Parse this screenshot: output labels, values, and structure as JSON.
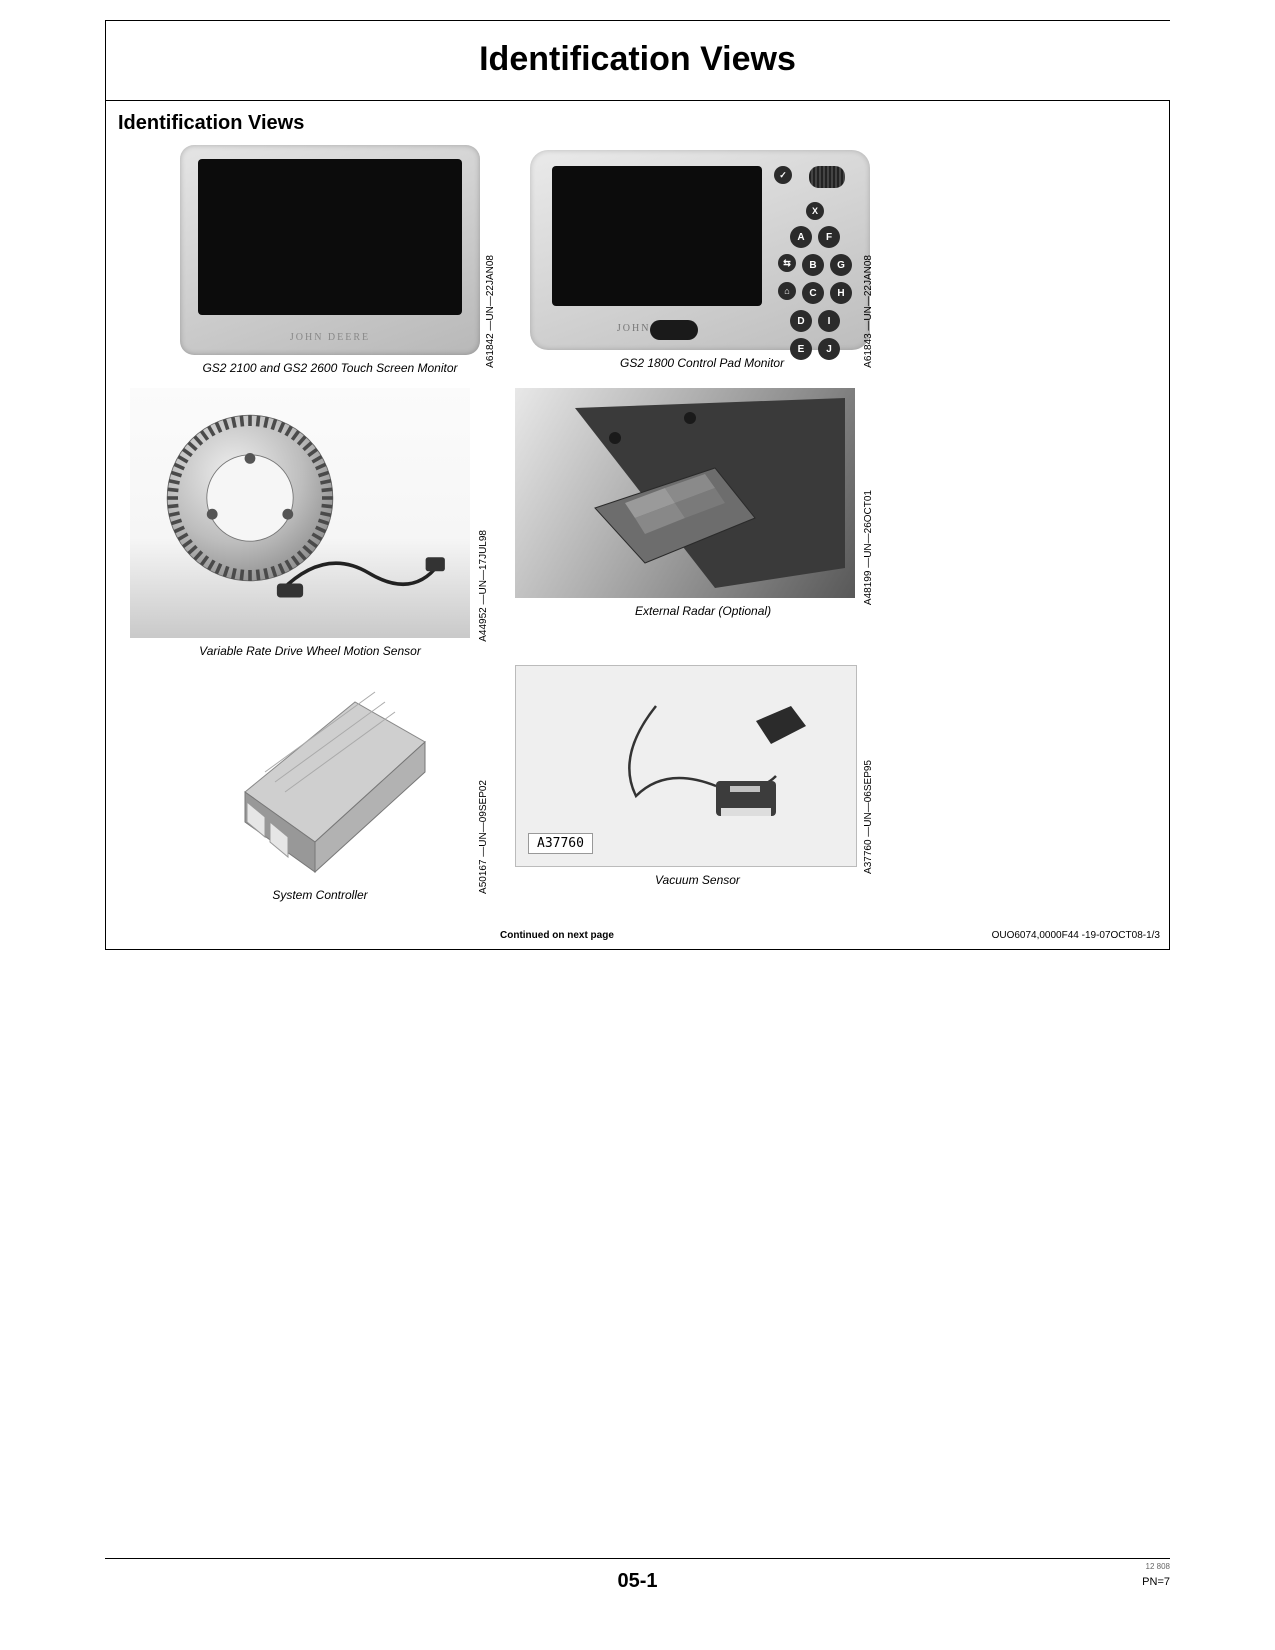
{
  "header": {
    "title": "Identification Views"
  },
  "section": {
    "title": "Identification Views"
  },
  "figures": {
    "fig1": {
      "caption": "GS2 2100 and GS2 2600 Touch Screen Monitor",
      "code": "A61842 —UN—22JAN08",
      "brand": "JOHN DEERE"
    },
    "fig2": {
      "caption": "GS2 1800 Control Pad Monitor",
      "code": "A61843 —UN—22JAN08",
      "brand": "JOHN DEERE"
    },
    "fig3": {
      "caption": "Variable Rate Drive Wheel Motion Sensor",
      "code": "A44952 —UN—17JUL98"
    },
    "fig4": {
      "caption": "External Radar (Optional)",
      "code": "A48199 —UN—26OCT01"
    },
    "fig5": {
      "caption": "System Controller",
      "code": "A50167 —UN—09SEP02"
    },
    "fig6": {
      "caption": "Vacuum Sensor",
      "code": "A37760 —UN—06SEP95",
      "stamp": "A37760"
    }
  },
  "buttons": {
    "check": "✓",
    "x": "X",
    "a": "A",
    "f": "F",
    "arrows": "⇆",
    "b": "B",
    "g": "G",
    "home": "⌂",
    "c": "C",
    "h": "H",
    "d": "D",
    "i": "I",
    "e": "E",
    "j": "J"
  },
  "footer": {
    "continued": "Continued on next page",
    "ref": "OUO6074,0000F44 -19-07OCT08-1/3",
    "page": "05-1",
    "small": "12 808",
    "pn": "PN=7"
  },
  "colors": {
    "rule": "#000000"
  }
}
